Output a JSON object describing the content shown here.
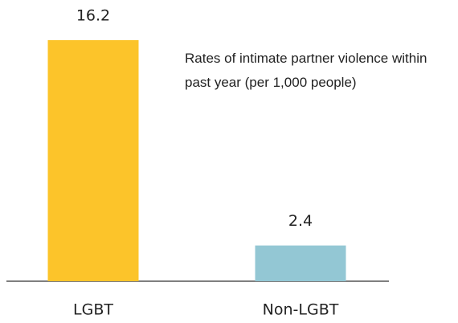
{
  "chart_data": {
    "type": "bar",
    "title": "Rates of intimate partner violence within past year (per 1,000 people)",
    "categories": [
      "LGBT",
      "Non-LGBT"
    ],
    "values": [
      16.2,
      2.4
    ],
    "colors": [
      "#fcc42a",
      "#93c7d4"
    ]
  }
}
